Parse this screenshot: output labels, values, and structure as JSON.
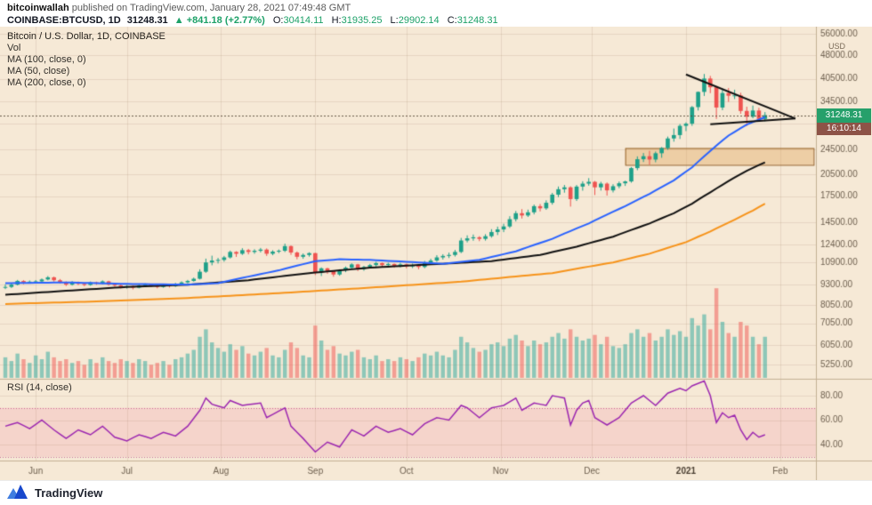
{
  "attribution": {
    "author": "bitcoinwallah",
    "rest": " published on TradingView.com, January 28, 2021 07:49:48 GMT"
  },
  "ticker": {
    "symbol": "COINBASE:BTCUSD, 1D",
    "last": "31248.31",
    "change": "▲ +841.18 (+2.77%)",
    "o_label": "O:",
    "o": "30414.11",
    "h_label": "H:",
    "h": "31935.25",
    "l_label": "L:",
    "l": "29902.14",
    "c_label": "C:",
    "c": "31248.31"
  },
  "legend": {
    "title": "Bitcoin / U.S. Dollar, 1D, COINBASE",
    "vol": "Vol",
    "ma100": "MA (100, close, 0)",
    "ma50": "MA (50, close)",
    "ma200": "MA (200, close, 0)"
  },
  "rsi_legend": "RSI (14, close)",
  "price_badge": "31248.31",
  "countdown": "16:10:14",
  "axis_unit": "USD",
  "footer": {
    "brand": "TradingView"
  },
  "colors": {
    "background": "#f6e9d6",
    "up": "#1ea089",
    "down": "#ef5350",
    "ma50": "#2962ff",
    "ma100": "#111111",
    "ma200": "#f7931a",
    "rsi": "#9c27b0",
    "badge_green": "#26a06b",
    "badge_countdown": "#8d5347",
    "accent_green": "#1da168"
  },
  "chart_data": {
    "type": "candlestick",
    "title": "Bitcoin / U.S. Dollar, 1D, COINBASE",
    "scale": "log",
    "x_ticks": [
      {
        "label": "Jun",
        "i": 5
      },
      {
        "label": "Jul",
        "i": 20
      },
      {
        "label": "Aug",
        "i": 35.5
      },
      {
        "label": "Sep",
        "i": 51
      },
      {
        "label": "Oct",
        "i": 66
      },
      {
        "label": "Nov",
        "i": 81.5
      },
      {
        "label": "Dec",
        "i": 96.5
      },
      {
        "label": "2021",
        "i": 112
      },
      {
        "label": "Feb",
        "i": 127.5
      }
    ],
    "price_axis": [
      56000,
      48000,
      40500,
      34500,
      29500,
      24500,
      20500,
      17500,
      14500,
      12400,
      10900,
      9300,
      8050,
      7050,
      6050,
      5250
    ],
    "rsi_axis": [
      80,
      60,
      40
    ],
    "last_price": 31248.31,
    "candles": [
      [
        9100,
        9320,
        9010,
        9150
      ],
      [
        9150,
        9380,
        9080,
        9300
      ],
      [
        9300,
        9620,
        9250,
        9550
      ],
      [
        9550,
        9600,
        9330,
        9450
      ],
      [
        9450,
        9580,
        9380,
        9500
      ],
      [
        9500,
        9610,
        9420,
        9520
      ],
      [
        9520,
        9720,
        9470,
        9650
      ],
      [
        9650,
        9890,
        9590,
        9800
      ],
      [
        9800,
        9850,
        9510,
        9600
      ],
      [
        9600,
        9680,
        9380,
        9450
      ],
      [
        9450,
        9520,
        9210,
        9300
      ],
      [
        9300,
        9540,
        9240,
        9470
      ],
      [
        9470,
        9510,
        9270,
        9350
      ],
      [
        9350,
        9420,
        9200,
        9280
      ],
      [
        9280,
        9510,
        9230,
        9450
      ],
      [
        9450,
        9500,
        9290,
        9380
      ],
      [
        9380,
        9590,
        9330,
        9520
      ],
      [
        9520,
        9560,
        9230,
        9300
      ],
      [
        9300,
        9360,
        9160,
        9250
      ],
      [
        9250,
        9310,
        9050,
        9150
      ],
      [
        9150,
        9270,
        9040,
        9200
      ],
      [
        9200,
        9250,
        8990,
        9100
      ],
      [
        9100,
        9320,
        9060,
        9250
      ],
      [
        9250,
        9380,
        9180,
        9300
      ],
      [
        9300,
        9350,
        9140,
        9220
      ],
      [
        9220,
        9280,
        9060,
        9150
      ],
      [
        9150,
        9320,
        9100,
        9250
      ],
      [
        9250,
        9300,
        9110,
        9200
      ],
      [
        9200,
        9420,
        9150,
        9350
      ],
      [
        9350,
        9520,
        9290,
        9450
      ],
      [
        9450,
        9620,
        9390,
        9550
      ],
      [
        9550,
        9780,
        9500,
        9700
      ],
      [
        9700,
        10380,
        9650,
        10200
      ],
      [
        10200,
        11200,
        10120,
        10900
      ],
      [
        10900,
        11440,
        10680,
        11050
      ],
      [
        11050,
        11260,
        10820,
        11100
      ],
      [
        11100,
        11420,
        10960,
        11300
      ],
      [
        11300,
        11860,
        11210,
        11750
      ],
      [
        11750,
        11810,
        11340,
        11600
      ],
      [
        11600,
        12070,
        11500,
        11900
      ],
      [
        11900,
        12010,
        11550,
        11750
      ],
      [
        11750,
        11980,
        11600,
        11850
      ],
      [
        11850,
        12090,
        11710,
        11950
      ],
      [
        11950,
        12050,
        11420,
        11600
      ],
      [
        11600,
        11890,
        11480,
        11780
      ],
      [
        11780,
        11960,
        11650,
        11850
      ],
      [
        11850,
        12470,
        11740,
        12250
      ],
      [
        12250,
        12310,
        11510,
        11700
      ],
      [
        11700,
        11790,
        11150,
        11350
      ],
      [
        11350,
        11620,
        11190,
        11500
      ],
      [
        11500,
        11720,
        11360,
        11650
      ],
      [
        11650,
        11680,
        9960,
        10150
      ],
      [
        10150,
        10520,
        9890,
        10450
      ],
      [
        10450,
        10490,
        10050,
        10250
      ],
      [
        10250,
        10310,
        9840,
        10000
      ],
      [
        10000,
        10380,
        9910,
        10300
      ],
      [
        10300,
        10590,
        10170,
        10500
      ],
      [
        10500,
        10830,
        10410,
        10750
      ],
      [
        10750,
        10790,
        10250,
        10400
      ],
      [
        10400,
        10640,
        10270,
        10550
      ],
      [
        10550,
        10790,
        10440,
        10700
      ],
      [
        10700,
        10950,
        10580,
        10850
      ],
      [
        10850,
        10900,
        10560,
        10700
      ],
      [
        10700,
        10880,
        10570,
        10780
      ],
      [
        10780,
        10820,
        10500,
        10650
      ],
      [
        10650,
        10870,
        10520,
        10750
      ],
      [
        10750,
        10800,
        10450,
        10600
      ],
      [
        10600,
        10810,
        10470,
        10700
      ],
      [
        10700,
        10750,
        10380,
        10550
      ],
      [
        10550,
        11020,
        10460,
        10900
      ],
      [
        10900,
        11190,
        10770,
        11050
      ],
      [
        11050,
        11480,
        10950,
        11300
      ],
      [
        11300,
        11560,
        11130,
        11420
      ],
      [
        11420,
        11690,
        11250,
        11500
      ],
      [
        11500,
        11920,
        11370,
        11750
      ],
      [
        11750,
        12990,
        11650,
        12750
      ],
      [
        12750,
        13230,
        12580,
        12950
      ],
      [
        12950,
        13310,
        12730,
        13050
      ],
      [
        13050,
        13150,
        12690,
        12900
      ],
      [
        12900,
        13340,
        12740,
        13150
      ],
      [
        13150,
        13830,
        13010,
        13550
      ],
      [
        13550,
        14080,
        13260,
        13800
      ],
      [
        13800,
        14380,
        13540,
        14100
      ],
      [
        14100,
        15170,
        13950,
        14850
      ],
      [
        14850,
        15750,
        14610,
        15500
      ],
      [
        15500,
        15960,
        14920,
        15250
      ],
      [
        15250,
        15900,
        15090,
        15600
      ],
      [
        15600,
        16490,
        15370,
        16300
      ],
      [
        16300,
        16550,
        15700,
        16050
      ],
      [
        16050,
        16990,
        15880,
        16700
      ],
      [
        16700,
        17920,
        16480,
        17700
      ],
      [
        17700,
        18760,
        17390,
        18400
      ],
      [
        18400,
        18970,
        17950,
        18650
      ],
      [
        18650,
        18790,
        16250,
        17150
      ],
      [
        17150,
        18960,
        16920,
        18750
      ],
      [
        18750,
        19480,
        18210,
        19150
      ],
      [
        19150,
        19920,
        18870,
        19400
      ],
      [
        19400,
        19510,
        17650,
        18650
      ],
      [
        18650,
        19400,
        18220,
        19150
      ],
      [
        19150,
        19310,
        17580,
        18250
      ],
      [
        18250,
        19070,
        17980,
        18800
      ],
      [
        18800,
        19440,
        18530,
        19200
      ],
      [
        19200,
        19560,
        18840,
        19450
      ],
      [
        19450,
        21560,
        19280,
        21400
      ],
      [
        21400,
        23270,
        21080,
        22800
      ],
      [
        22800,
        23830,
        22350,
        23300
      ],
      [
        23300,
        24210,
        21920,
        22750
      ],
      [
        22750,
        24090,
        22310,
        23800
      ],
      [
        23800,
        24880,
        23040,
        24700
      ],
      [
        24700,
        26810,
        24390,
        26450
      ],
      [
        26450,
        28400,
        25850,
        27100
      ],
      [
        27100,
        29320,
        26360,
        28950
      ],
      [
        28950,
        29680,
        27880,
        29400
      ],
      [
        29400,
        33350,
        28950,
        33100
      ],
      [
        33100,
        37010,
        32300,
        36900
      ],
      [
        36900,
        41950,
        35850,
        40600
      ],
      [
        40600,
        41380,
        36580,
        38150
      ],
      [
        38150,
        38480,
        30420,
        33000
      ],
      [
        33000,
        37820,
        32380,
        36600
      ],
      [
        36600,
        37950,
        34350,
        35900
      ],
      [
        35900,
        37480,
        35060,
        36000
      ],
      [
        36000,
        36680,
        31560,
        32200
      ],
      [
        32200,
        33190,
        28950,
        30900
      ],
      [
        30900,
        33460,
        30550,
        32300
      ],
      [
        32300,
        32950,
        30020,
        30414
      ],
      [
        30414,
        31935,
        29902,
        31248
      ]
    ],
    "volume": [
      1.1,
      0.9,
      1.3,
      1.0,
      0.8,
      1.2,
      1.0,
      1.4,
      1.1,
      0.9,
      1.0,
      0.8,
      0.9,
      0.7,
      1.0,
      0.8,
      1.1,
      0.9,
      0.8,
      1.0,
      0.9,
      0.8,
      1.0,
      0.9,
      0.7,
      0.8,
      0.9,
      0.7,
      1.0,
      1.1,
      1.3,
      1.5,
      2.2,
      2.6,
      1.9,
      1.6,
      1.4,
      1.8,
      1.5,
      1.7,
      1.3,
      1.2,
      1.4,
      1.6,
      1.2,
      1.1,
      1.5,
      1.9,
      1.6,
      1.2,
      1.1,
      2.8,
      2.0,
      1.5,
      1.7,
      1.3,
      1.2,
      1.4,
      1.5,
      1.1,
      1.0,
      1.2,
      0.9,
      1.0,
      0.9,
      1.1,
      1.0,
      0.9,
      1.1,
      1.3,
      1.2,
      1.4,
      1.2,
      1.1,
      1.5,
      2.2,
      1.9,
      1.6,
      1.4,
      1.5,
      1.8,
      1.9,
      1.7,
      2.1,
      2.3,
      2.0,
      1.7,
      2.0,
      1.8,
      1.9,
      2.2,
      2.4,
      2.1,
      2.6,
      2.2,
      2.0,
      2.1,
      2.3,
      1.8,
      2.2,
      1.7,
      1.6,
      1.8,
      2.4,
      2.6,
      2.2,
      2.4,
      2.0,
      2.2,
      2.6,
      2.3,
      2.5,
      2.2,
      3.2,
      2.8,
      3.4,
      2.6,
      4.8,
      3.0,
      2.4,
      2.2,
      3.0,
      2.8,
      2.2,
      1.8,
      2.2
    ],
    "ma50_keypoints": [
      [
        0,
        9400
      ],
      [
        10,
        9450
      ],
      [
        20,
        9350
      ],
      [
        30,
        9300
      ],
      [
        35,
        9400
      ],
      [
        45,
        10300
      ],
      [
        51,
        11000
      ],
      [
        55,
        11150
      ],
      [
        60,
        11100
      ],
      [
        66,
        10950
      ],
      [
        72,
        10800
      ],
      [
        78,
        11100
      ],
      [
        84,
        11800
      ],
      [
        90,
        12900
      ],
      [
        96,
        14400
      ],
      [
        102,
        16300
      ],
      [
        106,
        17800
      ],
      [
        110,
        19600
      ],
      [
        113,
        21500
      ],
      [
        116,
        24200
      ],
      [
        119,
        27000
      ],
      [
        122,
        29200
      ],
      [
        125,
        30800
      ]
    ],
    "ma100_keypoints": [
      [
        0,
        8650
      ],
      [
        10,
        8900
      ],
      [
        20,
        9150
      ],
      [
        30,
        9300
      ],
      [
        40,
        9600
      ],
      [
        50,
        10100
      ],
      [
        60,
        10500
      ],
      [
        70,
        10750
      ],
      [
        80,
        11000
      ],
      [
        88,
        11500
      ],
      [
        94,
        12200
      ],
      [
        100,
        13100
      ],
      [
        106,
        14400
      ],
      [
        110,
        15500
      ],
      [
        113,
        16600
      ],
      [
        116,
        18000
      ],
      [
        119,
        19500
      ],
      [
        122,
        21000
      ],
      [
        125,
        22300
      ]
    ],
    "ma200_keypoints": [
      [
        0,
        8100
      ],
      [
        15,
        8250
      ],
      [
        30,
        8450
      ],
      [
        45,
        8750
      ],
      [
        60,
        9100
      ],
      [
        75,
        9500
      ],
      [
        90,
        10100
      ],
      [
        100,
        10900
      ],
      [
        106,
        11600
      ],
      [
        112,
        12600
      ],
      [
        116,
        13600
      ],
      [
        120,
        14800
      ],
      [
        123,
        15800
      ],
      [
        125,
        16600
      ]
    ],
    "rsi_keypoints": [
      [
        0,
        55
      ],
      [
        2,
        58
      ],
      [
        4,
        53
      ],
      [
        6,
        60
      ],
      [
        8,
        52
      ],
      [
        10,
        45
      ],
      [
        12,
        52
      ],
      [
        14,
        48
      ],
      [
        16,
        55
      ],
      [
        18,
        46
      ],
      [
        20,
        43
      ],
      [
        22,
        48
      ],
      [
        24,
        45
      ],
      [
        26,
        50
      ],
      [
        28,
        47
      ],
      [
        30,
        55
      ],
      [
        32,
        68
      ],
      [
        33,
        78
      ],
      [
        34,
        73
      ],
      [
        36,
        70
      ],
      [
        37,
        76
      ],
      [
        39,
        72
      ],
      [
        42,
        74
      ],
      [
        43,
        62
      ],
      [
        46,
        70
      ],
      [
        47,
        55
      ],
      [
        49,
        45
      ],
      [
        51,
        34
      ],
      [
        53,
        42
      ],
      [
        55,
        38
      ],
      [
        57,
        52
      ],
      [
        59,
        47
      ],
      [
        61,
        55
      ],
      [
        63,
        50
      ],
      [
        65,
        53
      ],
      [
        67,
        48
      ],
      [
        69,
        57
      ],
      [
        71,
        62
      ],
      [
        73,
        60
      ],
      [
        75,
        72
      ],
      [
        76,
        70
      ],
      [
        78,
        62
      ],
      [
        80,
        70
      ],
      [
        82,
        72
      ],
      [
        84,
        78
      ],
      [
        85,
        68
      ],
      [
        87,
        74
      ],
      [
        89,
        72
      ],
      [
        90,
        80
      ],
      [
        92,
        78
      ],
      [
        93,
        56
      ],
      [
        94,
        68
      ],
      [
        95,
        74
      ],
      [
        96,
        76
      ],
      [
        97,
        62
      ],
      [
        99,
        56
      ],
      [
        101,
        62
      ],
      [
        103,
        74
      ],
      [
        105,
        80
      ],
      [
        107,
        72
      ],
      [
        109,
        82
      ],
      [
        111,
        86
      ],
      [
        112,
        84
      ],
      [
        113,
        88
      ],
      [
        115,
        92
      ],
      [
        116,
        80
      ],
      [
        117,
        58
      ],
      [
        118,
        66
      ],
      [
        119,
        62
      ],
      [
        120,
        64
      ],
      [
        121,
        52
      ],
      [
        122,
        44
      ],
      [
        123,
        50
      ],
      [
        124,
        46
      ],
      [
        125,
        48
      ]
    ],
    "rsi_band": [
      30,
      70
    ],
    "drawings": {
      "triangle_upper": [
        [
          112,
          41800
        ],
        [
          130,
          30500
        ]
      ],
      "triangle_lower": [
        [
          116,
          29300
        ],
        [
          130,
          30500
        ]
      ],
      "rectangle": {
        "i1": 102,
        "i2": 133,
        "p1": 24700,
        "p2": 21900
      }
    }
  }
}
